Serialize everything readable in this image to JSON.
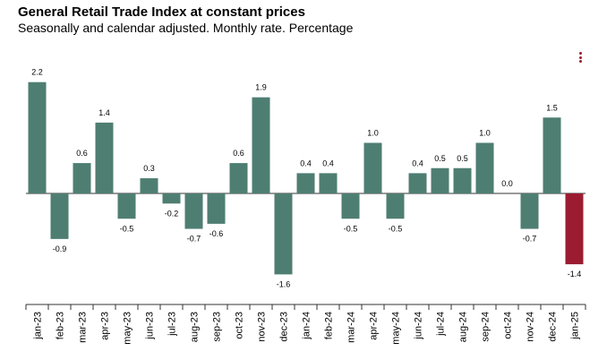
{
  "header": {
    "title": "General Retail Trade Index at constant prices",
    "subtitle": "Seasonally and calendar adjusted. Monthly rate. Percentage"
  },
  "colors": {
    "positive_bar": "#4e7e72",
    "highlight_bar": "#9b1c31",
    "axis": "#333333",
    "menu": "#9b1c31"
  },
  "menu_icon": "vertical-dots-menu-icon",
  "chart_data": {
    "type": "bar",
    "title": "General Retail Trade Index at constant prices",
    "subtitle": "Seasonally and calendar adjusted. Monthly rate. Percentage",
    "xlabel": "",
    "ylabel": "",
    "ylim": [
      -1.8,
      2.4
    ],
    "grid": false,
    "categories": [
      "jan-23",
      "feb-23",
      "mar-23",
      "apr-23",
      "may-23",
      "jun-23",
      "jul-23",
      "aug-23",
      "sep-23",
      "oct-23",
      "nov-23",
      "dec-23",
      "jan-24",
      "feb-24",
      "mar-24",
      "apr-24",
      "may-24",
      "jun-24",
      "jul-24",
      "aug-24",
      "sep-24",
      "oct-24",
      "nov-24",
      "dec-24",
      "jan-25"
    ],
    "values": [
      2.2,
      -0.9,
      0.6,
      1.4,
      -0.5,
      0.3,
      -0.2,
      -0.7,
      -0.6,
      0.6,
      1.9,
      -1.6,
      0.4,
      0.4,
      -0.5,
      1.0,
      -0.5,
      0.4,
      0.5,
      0.5,
      1.0,
      0.0,
      -0.7,
      1.5,
      -1.4
    ],
    "labels": [
      "2.2",
      "-0.9",
      "0.6",
      "1.4",
      "-0.5",
      "0.3",
      "-0.2",
      "-0.7",
      "-0.6",
      "0.6",
      "1.9",
      "-1.6",
      "0.4",
      "0.4",
      "-0.5",
      "1.0",
      "-0.5",
      "0.4",
      "0.5",
      "0.5",
      "1.0",
      "0.0",
      "-0.7",
      "1.5",
      "-1.4"
    ],
    "highlight_index": 24
  }
}
